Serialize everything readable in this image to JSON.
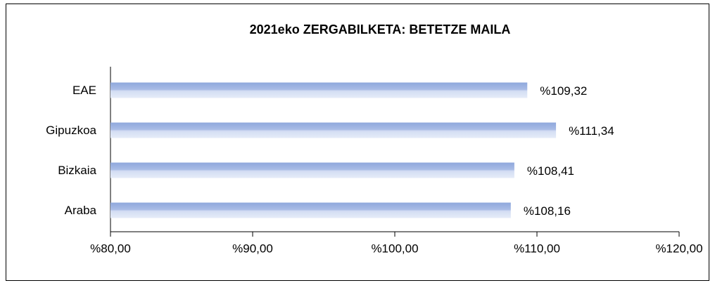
{
  "chart_data": {
    "type": "bar",
    "orientation": "horizontal",
    "title": "2021eko ZERGABILKETA:  BETETZE MAILA",
    "categories": [
      "EAE",
      "Gipuzkoa",
      "Bizkaia",
      "Araba"
    ],
    "values": [
      109.32,
      111.34,
      108.41,
      108.16
    ],
    "value_labels": [
      "%109,32",
      "%111,34",
      "%108,41",
      "%108,16"
    ],
    "color": "#8fa8dc",
    "xlim": [
      80,
      120
    ],
    "xticks": [
      {
        "value": 80,
        "label": "%80,00"
      },
      {
        "value": 90,
        "label": "%90,00"
      },
      {
        "value": 100,
        "label": "%100,00"
      },
      {
        "value": 110,
        "label": "%110,00"
      },
      {
        "value": 120,
        "label": "%120,00"
      }
    ],
    "grid": false
  }
}
